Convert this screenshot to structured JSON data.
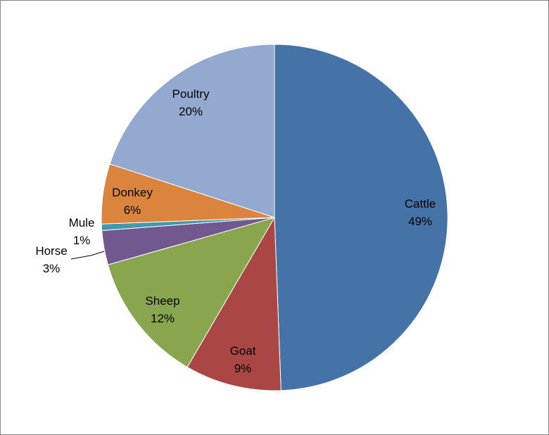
{
  "chart_data": {
    "type": "pie",
    "title": "",
    "slices": [
      {
        "label": "Cattle",
        "pct_label": "49%",
        "value": 49.4,
        "color": "#4572A7"
      },
      {
        "label": "Goat",
        "pct_label": "9%",
        "value": 9.0,
        "color": "#AA4643"
      },
      {
        "label": "Sheep",
        "pct_label": "12%",
        "value": 12.2,
        "color": "#89A54E"
      },
      {
        "label": "Horse",
        "pct_label": "3%",
        "value": 3.2,
        "color": "#71588F"
      },
      {
        "label": "Mule",
        "pct_label": "1%",
        "value": 0.6,
        "color": "#4198AF"
      },
      {
        "label": "Donkey",
        "pct_label": "6%",
        "value": 5.6,
        "color": "#DB843D"
      },
      {
        "label": "Poultry",
        "pct_label": "20%",
        "value": 20.0,
        "color": "#93A9CF"
      }
    ],
    "start_angle": "12 o'clock, clockwise",
    "legend": "none",
    "data_labels": "category name and percentage"
  }
}
